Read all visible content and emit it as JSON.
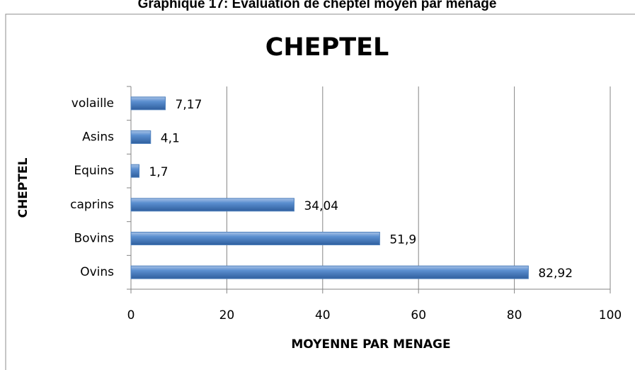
{
  "chart_data": {
    "type": "bar",
    "orientation": "horizontal",
    "caption": "Graphique 17: Evaluation de cheptel moyen par ménage",
    "title": "CHEPTEL",
    "x_label": "MOYENNE PAR MENAGE",
    "y_label": "CHEPTEL",
    "categories": [
      "Ovins",
      "Bovins",
      "caprins",
      "Equins",
      "Asins",
      "volaille"
    ],
    "values": [
      82.92,
      51.9,
      34.04,
      1.7,
      4.1,
      7.17
    ],
    "value_labels": [
      "82,92",
      "51,9",
      "34,04",
      "1,7",
      "4,1",
      "7,17"
    ],
    "color": "#4f81bd",
    "xlim": [
      0,
      100
    ],
    "xticks": [
      0,
      20,
      40,
      60,
      80,
      100
    ],
    "grid": true
  }
}
